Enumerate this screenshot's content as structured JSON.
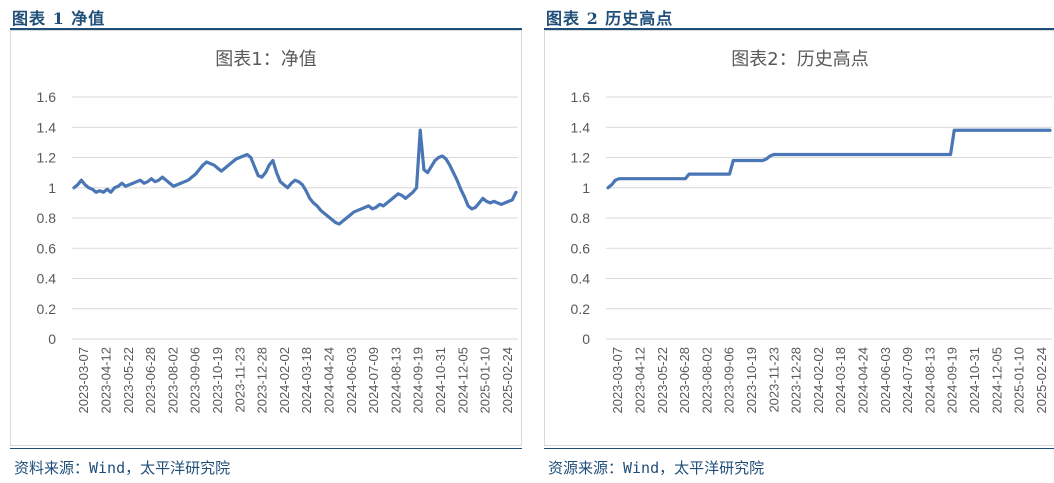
{
  "figures": [
    {
      "header": "图表 1 净值",
      "source": "资料来源：Wind，太平洋研究院",
      "chart_data": {
        "type": "line",
        "title": "图表1：净值",
        "ylim": [
          0,
          1.6
        ],
        "yticks": [
          "0",
          "0.2",
          "0.4",
          "0.6",
          "0.8",
          "1",
          "1.2",
          "1.4",
          "1.6"
        ],
        "x_tick_labels": [
          "2023-03-07",
          "2023-04-12",
          "2023-05-22",
          "2023-06-28",
          "2023-08-02",
          "2023-09-06",
          "2023-10-19",
          "2023-11-23",
          "2023-12-28",
          "2024-02-02",
          "2024-03-18",
          "2024-04-24",
          "2024-06-03",
          "2024-07-09",
          "2024-08-13",
          "2024-09-19",
          "2024-10-31",
          "2024-12-05",
          "2025-01-10",
          "2025-02-24"
        ],
        "grid": "horizontal",
        "series": [
          {
            "color": "#4a76b5",
            "values": [
              1.0,
              1.02,
              1.05,
              1.02,
              1.0,
              0.99,
              0.97,
              0.98,
              0.97,
              0.99,
              0.97,
              1.0,
              1.01,
              1.03,
              1.01,
              1.02,
              1.03,
              1.04,
              1.05,
              1.03,
              1.04,
              1.06,
              1.04,
              1.05,
              1.07,
              1.05,
              1.03,
              1.01,
              1.02,
              1.03,
              1.04,
              1.05,
              1.07,
              1.09,
              1.12,
              1.15,
              1.17,
              1.16,
              1.15,
              1.13,
              1.11,
              1.13,
              1.15,
              1.17,
              1.19,
              1.2,
              1.21,
              1.22,
              1.2,
              1.14,
              1.08,
              1.07,
              1.1,
              1.15,
              1.18,
              1.1,
              1.04,
              1.02,
              1.0,
              1.03,
              1.05,
              1.04,
              1.02,
              0.98,
              0.93,
              0.9,
              0.88,
              0.85,
              0.83,
              0.81,
              0.79,
              0.77,
              0.76,
              0.78,
              0.8,
              0.82,
              0.84,
              0.85,
              0.86,
              0.87,
              0.88,
              0.86,
              0.87,
              0.89,
              0.88,
              0.9,
              0.92,
              0.94,
              0.96,
              0.95,
              0.93,
              0.95,
              0.97,
              1.0,
              1.38,
              1.12,
              1.1,
              1.14,
              1.18,
              1.2,
              1.21,
              1.19,
              1.15,
              1.1,
              1.05,
              0.99,
              0.94,
              0.88,
              0.86,
              0.87,
              0.9,
              0.93,
              0.91,
              0.9,
              0.91,
              0.9,
              0.89,
              0.9,
              0.91,
              0.92,
              0.97
            ]
          }
        ]
      }
    },
    {
      "header": "图表 2 历史高点",
      "source": "资源来源：Wind，太平洋研究院",
      "chart_data": {
        "type": "line",
        "title": "图表2：历史高点",
        "ylim": [
          0,
          1.6
        ],
        "yticks": [
          "0",
          "0.2",
          "0.4",
          "0.6",
          "0.8",
          "1",
          "1.2",
          "1.4",
          "1.6"
        ],
        "x_tick_labels": [
          "2023-03-07",
          "2023-04-12",
          "2023-05-22",
          "2023-06-28",
          "2023-08-02",
          "2023-09-06",
          "2023-10-19",
          "2023-11-23",
          "2023-12-28",
          "2024-02-02",
          "2024-03-18",
          "2024-04-24",
          "2024-06-03",
          "2024-07-09",
          "2024-08-13",
          "2024-09-19",
          "2024-10-31",
          "2024-12-05",
          "2025-01-10",
          "2025-02-24"
        ],
        "grid": "horizontal",
        "series": [
          {
            "color": "#4a76b5",
            "values": [
              1.0,
              1.02,
              1.05,
              1.06,
              1.06,
              1.06,
              1.06,
              1.06,
              1.06,
              1.06,
              1.06,
              1.06,
              1.06,
              1.06,
              1.06,
              1.06,
              1.06,
              1.06,
              1.06,
              1.06,
              1.06,
              1.06,
              1.09,
              1.09,
              1.09,
              1.09,
              1.09,
              1.09,
              1.09,
              1.09,
              1.09,
              1.09,
              1.09,
              1.09,
              1.18,
              1.18,
              1.18,
              1.18,
              1.18,
              1.18,
              1.18,
              1.18,
              1.18,
              1.19,
              1.21,
              1.22,
              1.22,
              1.22,
              1.22,
              1.22,
              1.22,
              1.22,
              1.22,
              1.22,
              1.22,
              1.22,
              1.22,
              1.22,
              1.22,
              1.22,
              1.22,
              1.22,
              1.22,
              1.22,
              1.22,
              1.22,
              1.22,
              1.22,
              1.22,
              1.22,
              1.22,
              1.22,
              1.22,
              1.22,
              1.22,
              1.22,
              1.22,
              1.22,
              1.22,
              1.22,
              1.22,
              1.22,
              1.22,
              1.22,
              1.22,
              1.22,
              1.22,
              1.22,
              1.22,
              1.22,
              1.22,
              1.22,
              1.22,
              1.22,
              1.38,
              1.38,
              1.38,
              1.38,
              1.38,
              1.38,
              1.38,
              1.38,
              1.38,
              1.38,
              1.38,
              1.38,
              1.38,
              1.38,
              1.38,
              1.38,
              1.38,
              1.38,
              1.38,
              1.38,
              1.38,
              1.38,
              1.38,
              1.38,
              1.38,
              1.38,
              1.38
            ]
          }
        ]
      }
    }
  ]
}
